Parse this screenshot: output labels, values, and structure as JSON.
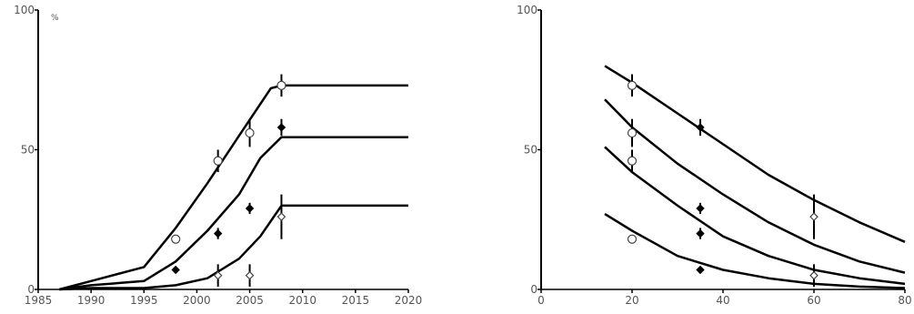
{
  "chart_data": [
    {
      "type": "line",
      "unit_label": "%",
      "xlim": [
        1985,
        2020
      ],
      "ylim": [
        0,
        100
      ],
      "x_ticks": [
        1985,
        1990,
        1995,
        2000,
        2005,
        2010,
        2015,
        2020
      ],
      "y_ticks": [
        0,
        50,
        100
      ],
      "grid": false,
      "series": [
        {
          "x": [
            1987,
            1990,
            1995,
            1998,
            2001,
            2004,
            2007,
            2008,
            2010,
            2015,
            2020
          ],
          "y": [
            0,
            3,
            8,
            22,
            38,
            55,
            72,
            73,
            73,
            73,
            73
          ]
        },
        {
          "x": [
            1987,
            1990,
            1995,
            1998,
            2001,
            2004,
            2006,
            2008,
            2010,
            2015,
            2020
          ],
          "y": [
            0,
            1.5,
            3,
            10,
            21,
            34,
            47,
            54.5,
            54.5,
            54.5,
            54.5
          ]
        },
        {
          "x": [
            1987,
            1990,
            1995,
            1998,
            2001,
            2004,
            2006,
            2008,
            2010,
            2015,
            2020
          ],
          "y": [
            0,
            0.5,
            0.5,
            1.5,
            4,
            11,
            19,
            30,
            30,
            30,
            30
          ]
        }
      ],
      "points": [
        {
          "x": 1998,
          "y": 18,
          "marker": "circle"
        },
        {
          "x": 2002,
          "y": 46,
          "marker": "circle",
          "err": 4
        },
        {
          "x": 2005,
          "y": 56,
          "marker": "circle",
          "err": 5
        },
        {
          "x": 2008,
          "y": 73,
          "marker": "circle",
          "err": 4
        },
        {
          "x": 1998,
          "y": 7,
          "marker": "diamond-filled"
        },
        {
          "x": 2002,
          "y": 20,
          "marker": "diamond-filled",
          "err": 2
        },
        {
          "x": 2005,
          "y": 29,
          "marker": "diamond-filled",
          "err": 2
        },
        {
          "x": 2008,
          "y": 58,
          "marker": "diamond-filled",
          "err": 3
        },
        {
          "x": 2002,
          "y": 5,
          "marker": "diamond-open",
          "err": 4
        },
        {
          "x": 2005,
          "y": 5,
          "marker": "diamond-open",
          "err": 4
        },
        {
          "x": 2008,
          "y": 26,
          "marker": "diamond-open",
          "err": 8
        }
      ]
    },
    {
      "type": "line",
      "xlim": [
        0,
        80
      ],
      "ylim": [
        0,
        100
      ],
      "x_ticks": [
        0,
        20,
        40,
        60,
        80
      ],
      "y_ticks": [
        0,
        50,
        100
      ],
      "grid": false,
      "series": [
        {
          "x": [
            14,
            20,
            30,
            40,
            50,
            60,
            70,
            80
          ],
          "y": [
            80,
            74,
            63,
            52,
            41,
            32,
            24,
            17
          ]
        },
        {
          "x": [
            14,
            20,
            30,
            40,
            50,
            60,
            70,
            80
          ],
          "y": [
            68,
            58,
            45,
            34,
            24,
            16,
            10,
            6
          ]
        },
        {
          "x": [
            14,
            20,
            30,
            40,
            50,
            60,
            70,
            80
          ],
          "y": [
            51,
            42,
            30,
            19,
            12,
            7,
            4,
            2
          ]
        },
        {
          "x": [
            14,
            20,
            30,
            40,
            50,
            60,
            70,
            80
          ],
          "y": [
            27,
            21,
            12,
            7,
            4,
            2,
            1,
            0.5
          ]
        }
      ],
      "points": [
        {
          "x": 20,
          "y": 73,
          "marker": "circle",
          "err": 4
        },
        {
          "x": 20,
          "y": 56,
          "marker": "circle",
          "err": 5
        },
        {
          "x": 20,
          "y": 46,
          "marker": "circle",
          "err": 4
        },
        {
          "x": 20,
          "y": 18,
          "marker": "circle"
        },
        {
          "x": 35,
          "y": 58,
          "marker": "diamond-filled",
          "err": 3
        },
        {
          "x": 35,
          "y": 29,
          "marker": "diamond-filled",
          "err": 2
        },
        {
          "x": 35,
          "y": 20,
          "marker": "diamond-filled",
          "err": 2
        },
        {
          "x": 35,
          "y": 7,
          "marker": "diamond-filled"
        },
        {
          "x": 60,
          "y": 26,
          "marker": "diamond-open",
          "err": 8
        },
        {
          "x": 60,
          "y": 5,
          "marker": "diamond-open",
          "err": 4
        }
      ]
    }
  ]
}
